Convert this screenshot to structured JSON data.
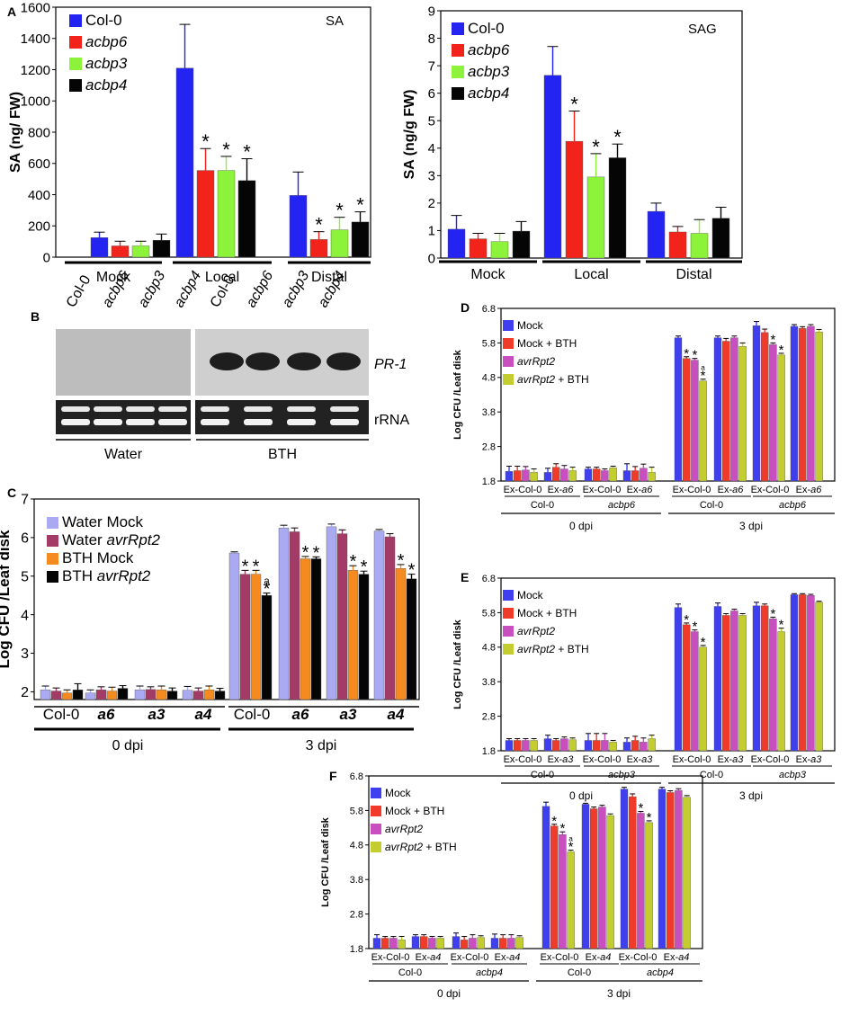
{
  "colors": {
    "blue": "#2323f2",
    "red": "#f2231a",
    "green": "#8cf23a",
    "black": "#050505",
    "c_lav": "#aaaaf2",
    "c_plum": "#a33b66",
    "c_orange": "#f58a21",
    "d_blue": "#3f3ff0",
    "d_red": "#f03a2a",
    "d_magenta": "#c94fc0",
    "d_olive": "#c4cd2f"
  },
  "chart_data": [
    {
      "id": "A",
      "panel_label": "A",
      "type": "bar",
      "annotation": "SA",
      "ylabel": "SA (ng/ FW)",
      "ylim": [
        0,
        1600
      ],
      "yticks": [
        "0",
        "200",
        "400",
        "600",
        "800",
        "1000",
        "1200",
        "1400",
        "1600"
      ],
      "legend": [
        "Col-0",
        "acbp6",
        "acbp3",
        "acbp4"
      ],
      "categories": [
        "Mock",
        "Local",
        "Distal"
      ],
      "series": [
        {
          "name": "Col-0",
          "values": [
            125,
            1210,
            395
          ],
          "errors": [
            35,
            280,
            150
          ],
          "stars": [
            "",
            "",
            ""
          ]
        },
        {
          "name": "acbp6",
          "values": [
            72,
            555,
            113
          ],
          "errors": [
            30,
            140,
            50
          ],
          "stars": [
            "",
            "*",
            "*"
          ]
        },
        {
          "name": "acbp3",
          "values": [
            72,
            555,
            175
          ],
          "errors": [
            30,
            90,
            80
          ],
          "stars": [
            "",
            "*",
            "*"
          ]
        },
        {
          "name": "acbp4",
          "values": [
            108,
            490,
            225
          ],
          "errors": [
            40,
            140,
            65
          ],
          "stars": [
            "",
            "*",
            "*"
          ]
        }
      ]
    },
    {
      "id": "B",
      "panel_label": "SAG",
      "type": "bar",
      "annotation": "SAG",
      "ylabel": "SA (ng/g FW)",
      "ylim": [
        0,
        9
      ],
      "yticks": [
        "0",
        "1",
        "2",
        "3",
        "4",
        "5",
        "6",
        "7",
        "8",
        "9"
      ],
      "legend": [
        "Col-0",
        "acbp6",
        "acbp3",
        "acbp4"
      ],
      "categories": [
        "Mock",
        "Local",
        "Distal"
      ],
      "series": [
        {
          "name": "Col-0",
          "values": [
            1.05,
            6.65,
            1.7
          ],
          "errors": [
            0.5,
            1.05,
            0.3
          ],
          "stars": [
            "",
            "",
            ""
          ]
        },
        {
          "name": "acbp6",
          "values": [
            0.7,
            4.25,
            0.95
          ],
          "errors": [
            0.2,
            1.1,
            0.2
          ],
          "stars": [
            "",
            "*",
            ""
          ]
        },
        {
          "name": "acbp3",
          "values": [
            0.6,
            2.95,
            0.9
          ],
          "errors": [
            0.3,
            0.85,
            0.5
          ],
          "stars": [
            "",
            "*",
            ""
          ]
        },
        {
          "name": "acbp4",
          "values": [
            0.98,
            3.65,
            1.45
          ],
          "errors": [
            0.35,
            0.5,
            0.4
          ],
          "stars": [
            "",
            "*",
            ""
          ]
        }
      ]
    },
    {
      "id": "C",
      "panel_label": "C",
      "type": "bar",
      "ylabel": "Log CFU /Leaf disk",
      "ylim": [
        1.8,
        7
      ],
      "yticks": [
        "2",
        "3",
        "4",
        "5",
        "6",
        "7"
      ],
      "legend": [
        "Water Mock",
        "Water avrRpt2",
        "BTH Mock",
        "BTH avrRpt2"
      ],
      "categories": [
        "Col-0",
        "a6",
        "a3",
        "a4",
        "Col-0",
        "a6",
        "a3",
        "a4"
      ],
      "groups": [
        "0 dpi",
        "3 dpi"
      ],
      "series": [
        {
          "name": "Water Mock",
          "values": [
            2.05,
            1.97,
            2.05,
            2.04,
            5.6,
            6.25,
            6.28,
            6.17
          ],
          "errors": [
            0.1,
            0.08,
            0.1,
            0.1,
            0.03,
            0.07,
            0.07,
            0.04
          ],
          "stars": [
            "",
            "",
            "",
            "",
            "",
            "",
            "",
            ""
          ]
        },
        {
          "name": "Water avrRpt2",
          "values": [
            2.02,
            2.05,
            2.06,
            2.02,
            5.05,
            6.15,
            6.1,
            6.02
          ],
          "errors": [
            0.08,
            0.08,
            0.07,
            0.08,
            0.1,
            0.1,
            0.1,
            0.08
          ],
          "stars": [
            "",
            "",
            "",
            "",
            "*",
            "",
            "",
            ""
          ]
        },
        {
          "name": "BTH Mock",
          "values": [
            1.97,
            2.02,
            2.05,
            2.05,
            5.05,
            5.45,
            5.15,
            5.2
          ],
          "errors": [
            0.08,
            0.1,
            0.1,
            0.1,
            0.1,
            0.06,
            0.12,
            0.1
          ],
          "stars": [
            "",
            "",
            "",
            "",
            "*",
            "*",
            "*",
            "*"
          ]
        },
        {
          "name": "BTH avrRpt2",
          "values": [
            2.05,
            2.09,
            2.02,
            2.02,
            4.5,
            5.45,
            5.05,
            4.93
          ],
          "errors": [
            0.16,
            0.07,
            0.08,
            0.07,
            0.06,
            0.05,
            0.08,
            0.12
          ],
          "stars": [
            "",
            "",
            "",
            "",
            "*",
            "*",
            "*",
            "*"
          ]
        }
      ],
      "letters": [
        {
          "series": 3,
          "index": 4,
          "text": "a"
        }
      ]
    },
    {
      "id": "D",
      "panel_label": "D",
      "type": "bar",
      "ylabel": "Log CFU /Leaf disk",
      "ylim": [
        1.8,
        6.8
      ],
      "yticks": [
        "1.8",
        "2.8",
        "3.8",
        "4.8",
        "5.8",
        "6.8"
      ],
      "legend": [
        "Mock",
        "Mock + BTH",
        "avrRpt2",
        "avrRpt2 + BTH"
      ],
      "categories": [
        "Ex-Col-0",
        "Ex-a6",
        "Ex-Col-0",
        "Ex-a6",
        "Ex-Col-0",
        "Ex-a6",
        "Ex-Col-0",
        "Ex-a6"
      ],
      "genotypes": [
        "Col-0",
        "acbp6",
        "Col-0",
        "acbp6"
      ],
      "groups": [
        "0 dpi",
        "3 dpi"
      ],
      "series": [
        {
          "name": "Mock",
          "values": [
            2.08,
            2.05,
            2.15,
            2.1,
            5.95,
            5.95,
            6.3,
            6.28
          ],
          "errors": [
            0.15,
            0.12,
            0.05,
            0.2,
            0.05,
            0.05,
            0.12,
            0.05
          ],
          "stars": [
            "",
            "",
            "",
            "",
            "",
            "",
            "",
            ""
          ]
        },
        {
          "name": "Mock + BTH",
          "values": [
            2.1,
            2.2,
            2.15,
            2.1,
            5.35,
            5.85,
            6.1,
            6.22
          ],
          "errors": [
            0.13,
            0.1,
            0.05,
            0.12,
            0.05,
            0.08,
            0.1,
            0.05
          ],
          "stars": [
            "",
            "",
            "",
            "",
            "*",
            "",
            "",
            ""
          ]
        },
        {
          "name": "avrRpt2",
          "values": [
            2.12,
            2.15,
            2.1,
            2.17,
            5.3,
            5.95,
            5.75,
            6.28
          ],
          "errors": [
            0.1,
            0.1,
            0.05,
            0.12,
            0.05,
            0.05,
            0.05,
            0.05
          ],
          "stars": [
            "",
            "",
            "",
            "",
            "*",
            "",
            "*",
            ""
          ]
        },
        {
          "name": "avrRpt2 + BTH",
          "values": [
            2.05,
            2.1,
            2.18,
            2.05,
            4.7,
            5.7,
            5.45,
            6.12
          ],
          "errors": [
            0.1,
            0.1,
            0.05,
            0.15,
            0.05,
            0.1,
            0.05,
            0.07
          ],
          "stars": [
            "",
            "",
            "",
            "",
            "*",
            "",
            "*",
            ""
          ]
        }
      ],
      "letters": [
        {
          "series": 3,
          "index": 4,
          "text": "a"
        }
      ]
    },
    {
      "id": "E",
      "panel_label": "E",
      "type": "bar",
      "ylabel": "Log CFU /Leaf disk",
      "ylim": [
        1.8,
        6.8
      ],
      "yticks": [
        "1.8",
        "2.8",
        "3.8",
        "4.8",
        "5.8",
        "6.8"
      ],
      "legend": [
        "Mock",
        "Mock + BTH",
        "avrRpt2",
        "avrRpt2 + BTH"
      ],
      "categories": [
        "Ex-Col-0",
        "Ex-a3",
        "Ex-Col-0",
        "Ex-a3",
        "Ex-Col-0",
        "Ex-a3",
        "Ex-Col-0",
        "Ex-a3"
      ],
      "genotypes": [
        "Col-0",
        "acbp3",
        "Col-0",
        "acbp3"
      ],
      "groups": [
        "0 dpi",
        "3 dpi"
      ],
      "series": [
        {
          "name": "Mock",
          "values": [
            2.1,
            2.15,
            2.1,
            2.05,
            5.95,
            5.98,
            6.0,
            6.32
          ],
          "errors": [
            0.05,
            0.1,
            0.2,
            0.12,
            0.1,
            0.1,
            0.1,
            0.03
          ],
          "stars": [
            "",
            "",
            "",
            "",
            "",
            "",
            "",
            ""
          ]
        },
        {
          "name": "Mock + BTH",
          "values": [
            2.1,
            2.1,
            2.1,
            2.1,
            5.45,
            5.72,
            6.0,
            6.32
          ],
          "errors": [
            0.05,
            0.05,
            0.2,
            0.12,
            0.05,
            0.05,
            0.05,
            0.03
          ],
          "stars": [
            "",
            "",
            "",
            "",
            "*",
            "",
            "",
            ""
          ]
        },
        {
          "name": "avrRpt2",
          "values": [
            2.1,
            2.15,
            2.1,
            2.05,
            5.25,
            5.85,
            5.62,
            6.3
          ],
          "errors": [
            0.05,
            0.05,
            0.2,
            0.12,
            0.05,
            0.05,
            0.05,
            0.03
          ],
          "stars": [
            "",
            "",
            "",
            "",
            "*",
            "",
            "*",
            ""
          ]
        },
        {
          "name": "avrRpt2 + BTH",
          "values": [
            2.1,
            2.12,
            2.05,
            2.15,
            4.8,
            5.72,
            5.25,
            6.1
          ],
          "errors": [
            0.05,
            0.05,
            0.05,
            0.1,
            0.05,
            0.05,
            0.1,
            0.03
          ],
          "stars": [
            "",
            "",
            "",
            "",
            "*",
            "",
            "*",
            ""
          ]
        }
      ],
      "letters": []
    },
    {
      "id": "F",
      "panel_label": "F",
      "type": "bar",
      "ylabel": "Log CFU /Leaf disk",
      "ylim": [
        1.8,
        6.8
      ],
      "yticks": [
        "1.8",
        "2.8",
        "3.8",
        "4.8",
        "5.8",
        "6.8"
      ],
      "legend": [
        "Mock",
        "Mock + BTH",
        "avrRpt2",
        "avrRpt2 + BTH"
      ],
      "categories": [
        "Ex-Col-0",
        "Ex-a4",
        "Ex-Col-0",
        "Ex-a4",
        "Ex-Col-0",
        "Ex-a4",
        "Ex-Col-0",
        "Ex-a4"
      ],
      "genotypes": [
        "Col-0",
        "acbp4",
        "Col-0",
        "acbp4"
      ],
      "groups": [
        "0 dpi",
        "3 dpi"
      ],
      "series": [
        {
          "name": "Mock",
          "values": [
            2.1,
            2.15,
            2.15,
            2.1,
            5.92,
            5.98,
            6.42,
            6.42
          ],
          "errors": [
            0.1,
            0.05,
            0.1,
            0.12,
            0.12,
            0.03,
            0.05,
            0.05
          ],
          "stars": [
            "",
            "",
            "",
            "",
            "",
            "",
            "",
            ""
          ]
        },
        {
          "name": "Mock + BTH",
          "values": [
            2.1,
            2.15,
            2.05,
            2.1,
            5.35,
            5.85,
            6.2,
            6.32
          ],
          "errors": [
            0.05,
            0.05,
            0.1,
            0.1,
            0.05,
            0.05,
            0.08,
            0.05
          ],
          "stars": [
            "",
            "",
            "",
            "",
            "*",
            "",
            "",
            ""
          ]
        },
        {
          "name": "avrRpt2",
          "values": [
            2.1,
            2.1,
            2.1,
            2.1,
            5.1,
            5.9,
            5.72,
            6.38
          ],
          "errors": [
            0.05,
            0.05,
            0.1,
            0.1,
            0.08,
            0.05,
            0.05,
            0.05
          ],
          "stars": [
            "",
            "",
            "",
            "",
            "*",
            "",
            "*",
            ""
          ]
        },
        {
          "name": "avrRpt2 + BTH",
          "values": [
            2.05,
            2.1,
            2.12,
            2.12,
            4.6,
            5.65,
            5.45,
            6.18
          ],
          "errors": [
            0.1,
            0.05,
            0.05,
            0.05,
            0.05,
            0.05,
            0.05,
            0.05
          ],
          "stars": [
            "",
            "",
            "",
            "",
            "*",
            "",
            "*",
            ""
          ]
        }
      ],
      "letters": [
        {
          "series": 3,
          "index": 4,
          "text": "a"
        }
      ]
    }
  ],
  "blot": {
    "panel_label": "B",
    "lanes": [
      "Col-0",
      "acbp6",
      "acbp3",
      "acbp4",
      "Col-0",
      "acbp6",
      "acbp3",
      "acbp4"
    ],
    "band_labels": [
      "PR-1",
      "rRNA"
    ],
    "treatments": [
      "Water",
      "BTH"
    ]
  }
}
